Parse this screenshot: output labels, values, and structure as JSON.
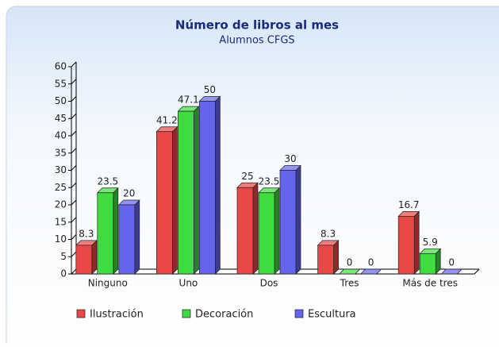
{
  "chart_data": {
    "type": "bar3d",
    "title": "Número de libros al mes",
    "subtitle": "Alumnos CFGS",
    "categories": [
      "Ninguno",
      "Uno",
      "Dos",
      "Tres",
      "Más de tres"
    ],
    "series": [
      {
        "name": "Ilustración",
        "color": "#e84848",
        "values": [
          8.3,
          41.2,
          25,
          8.3,
          16.7
        ]
      },
      {
        "name": "Decoración",
        "color": "#3fdc3f",
        "values": [
          23.5,
          47.1,
          23.5,
          0,
          5.9
        ]
      },
      {
        "name": "Escultura",
        "color": "#6464ec",
        "values": [
          20,
          50,
          30,
          0,
          0
        ]
      }
    ],
    "ylim": [
      0,
      60
    ],
    "yticks": [
      0,
      5,
      10,
      15,
      20,
      25,
      30,
      35,
      40,
      45,
      50,
      55,
      60
    ],
    "legend": "bottom-left"
  }
}
